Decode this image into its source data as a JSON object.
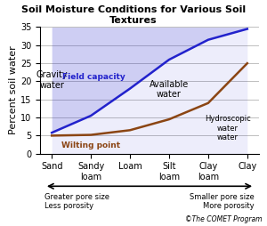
{
  "chart_data": {
    "type": "area",
    "title": "Soil Moisture Conditions for Various Soil Textures",
    "y_label": "Percent soil water",
    "categories": [
      "Sand",
      "Sandy\nloam",
      "Loam",
      "Silt\nloam",
      "Clay\nloam",
      "Clay"
    ],
    "series": [
      {
        "name": "Field capacity",
        "color": "#2222cc",
        "values": [
          5.8,
          10.5,
          18.0,
          26.0,
          31.5,
          34.5
        ]
      },
      {
        "name": "Wilting point",
        "color": "#8B4513",
        "values": [
          5.0,
          5.2,
          6.5,
          9.5,
          14.0,
          25.0
        ]
      }
    ],
    "annotations": [
      "Gravity\nwater",
      "Available\nwater",
      "Hydroscopic\nwater\nwater"
    ],
    "arrow_labels": [
      "Greater pore size\nLess porosity",
      "Smaller pore size\nMore porosity"
    ],
    "credit": "©The COMET Program",
    "ylim": [
      0,
      35
    ],
    "yticks": [
      0,
      5,
      10,
      15,
      20,
      25,
      30,
      35
    ],
    "grid": true
  }
}
